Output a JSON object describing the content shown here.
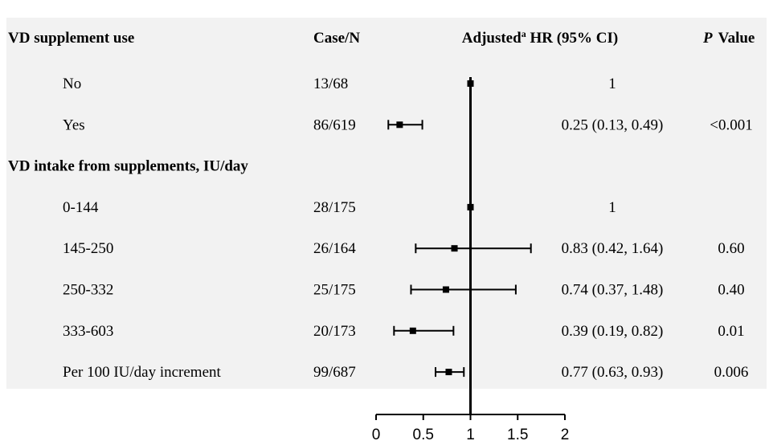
{
  "chart_data": {
    "type": "forest",
    "columns": {
      "label": "VD supplement use",
      "case": "Case/N",
      "hr_prefix": "Adjusted",
      "hr_sup": "a",
      "hr_suffix": " HR (95% CI)",
      "p_italic": "P",
      "p_rest": "Value"
    },
    "rows": [
      {
        "label": "No",
        "case": "13/68",
        "hr": 1,
        "low": null,
        "high": null,
        "hr_text": "1",
        "p": ""
      },
      {
        "label": "Yes",
        "case": "86/619",
        "hr": 0.25,
        "low": 0.13,
        "high": 0.49,
        "hr_text": "0.25 (0.13, 0.49)",
        "p": "<0.001"
      },
      {
        "label": "VD intake from supplements, IU/day",
        "header": true
      },
      {
        "label": "0-144",
        "case": "28/175",
        "hr": 1,
        "low": null,
        "high": null,
        "hr_text": "1",
        "p": ""
      },
      {
        "label": "145-250",
        "case": "26/164",
        "hr": 0.83,
        "low": 0.42,
        "high": 1.64,
        "hr_text": "0.83 (0.42, 1.64)",
        "p": "0.60"
      },
      {
        "label": "250-332",
        "case": "25/175",
        "hr": 0.74,
        "low": 0.37,
        "high": 1.48,
        "hr_text": "0.74 (0.37, 1.48)",
        "p": "0.40"
      },
      {
        "label": "333-603",
        "case": "20/173",
        "hr": 0.39,
        "low": 0.19,
        "high": 0.82,
        "hr_text": "0.39 (0.19, 0.82)",
        "p": "0.01"
      },
      {
        "label": "Per 100 IU/day increment",
        "case": "99/687",
        "hr": 0.77,
        "low": 0.63,
        "high": 0.93,
        "hr_text": "0.77 (0.63, 0.93)",
        "p": "0.006"
      }
    ],
    "x_ticks": [
      0,
      0.5,
      1,
      1.5,
      2
    ],
    "x_tick_labels": [
      "0",
      "0.5",
      "1",
      "1.5",
      "2"
    ],
    "xlim": [
      0,
      2
    ],
    "reference_line": 1,
    "background_color": "#f2f2f2",
    "mark_color": "#000000"
  }
}
